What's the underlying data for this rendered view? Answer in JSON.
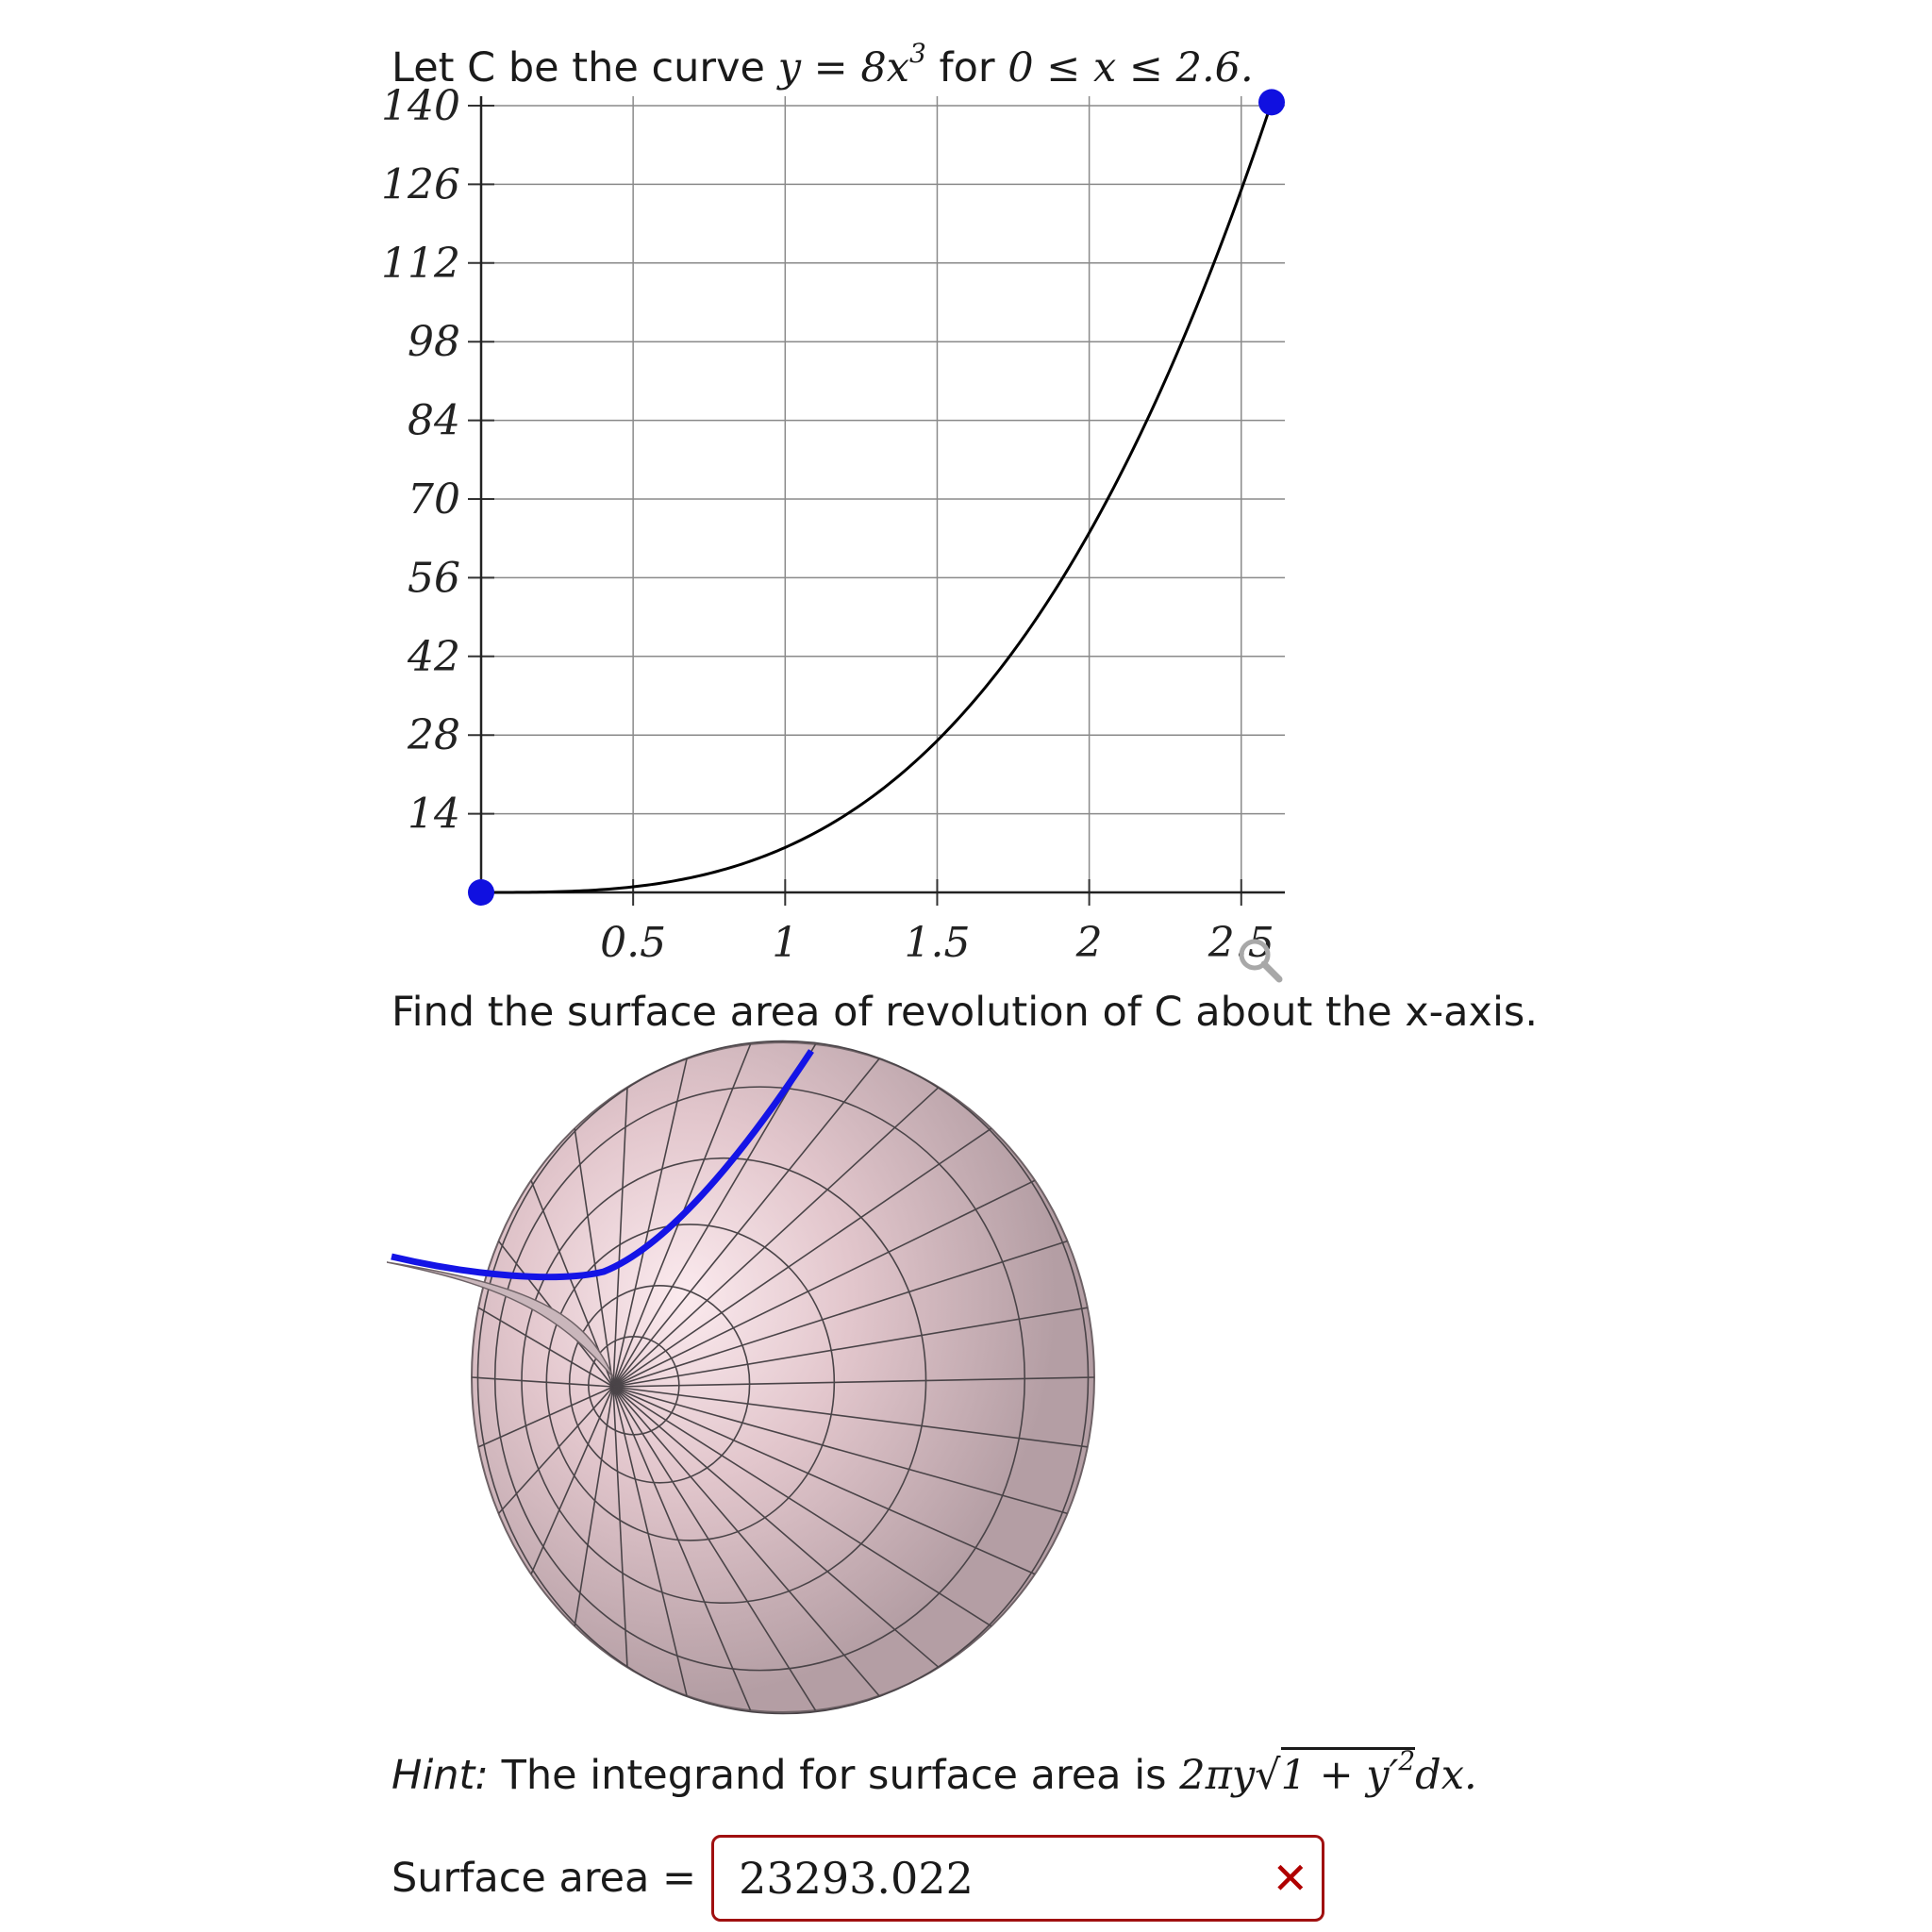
{
  "problem": {
    "intro_text": "Let C be the curve",
    "curve_math": "y = 8x",
    "curve_exp": "3",
    "for_text": "for",
    "domain_math": "0 ≤ x ≤ 2.6.",
    "question": "Find the surface area of revolution of C about the x-axis."
  },
  "hint": {
    "label": "Hint:",
    "text": "The integrand for surface area is",
    "formula_prefix": "2πy",
    "formula_radicand": "1 + y′",
    "formula_radicand_exp": "2",
    "formula_suffix": "dx."
  },
  "answer": {
    "label": "Surface area =",
    "value": "23293.022",
    "status": "incorrect"
  },
  "icons": {
    "zoom": "magnifier-icon",
    "status": "incorrect-x-icon"
  },
  "colors": {
    "curve": "#000000",
    "endpoint": "#1010e0",
    "answer_border": "#a01010",
    "surface_fill": "#b39ca3"
  },
  "chart_data": {
    "type": "line",
    "function": "y = 8x^3",
    "x": [
      0,
      0.26,
      0.52,
      0.78,
      1.04,
      1.3,
      1.56,
      1.82,
      2.08,
      2.34,
      2.6
    ],
    "y": [
      0,
      0.141,
      1.125,
      3.796,
      8.999,
      17.576,
      30.371,
      48.229,
      71.991,
      102.503,
      140.608
    ],
    "endpoints": [
      [
        0,
        0
      ],
      [
        2.6,
        140.608
      ]
    ],
    "xlim": [
      0,
      2.6
    ],
    "ylim": [
      0,
      140
    ],
    "x_ticks": [
      "0.5",
      "1",
      "1.5",
      "2",
      "2.5"
    ],
    "y_ticks": [
      "14",
      "28",
      "42",
      "56",
      "70",
      "84",
      "98",
      "112",
      "126",
      "140"
    ],
    "grid": true
  }
}
